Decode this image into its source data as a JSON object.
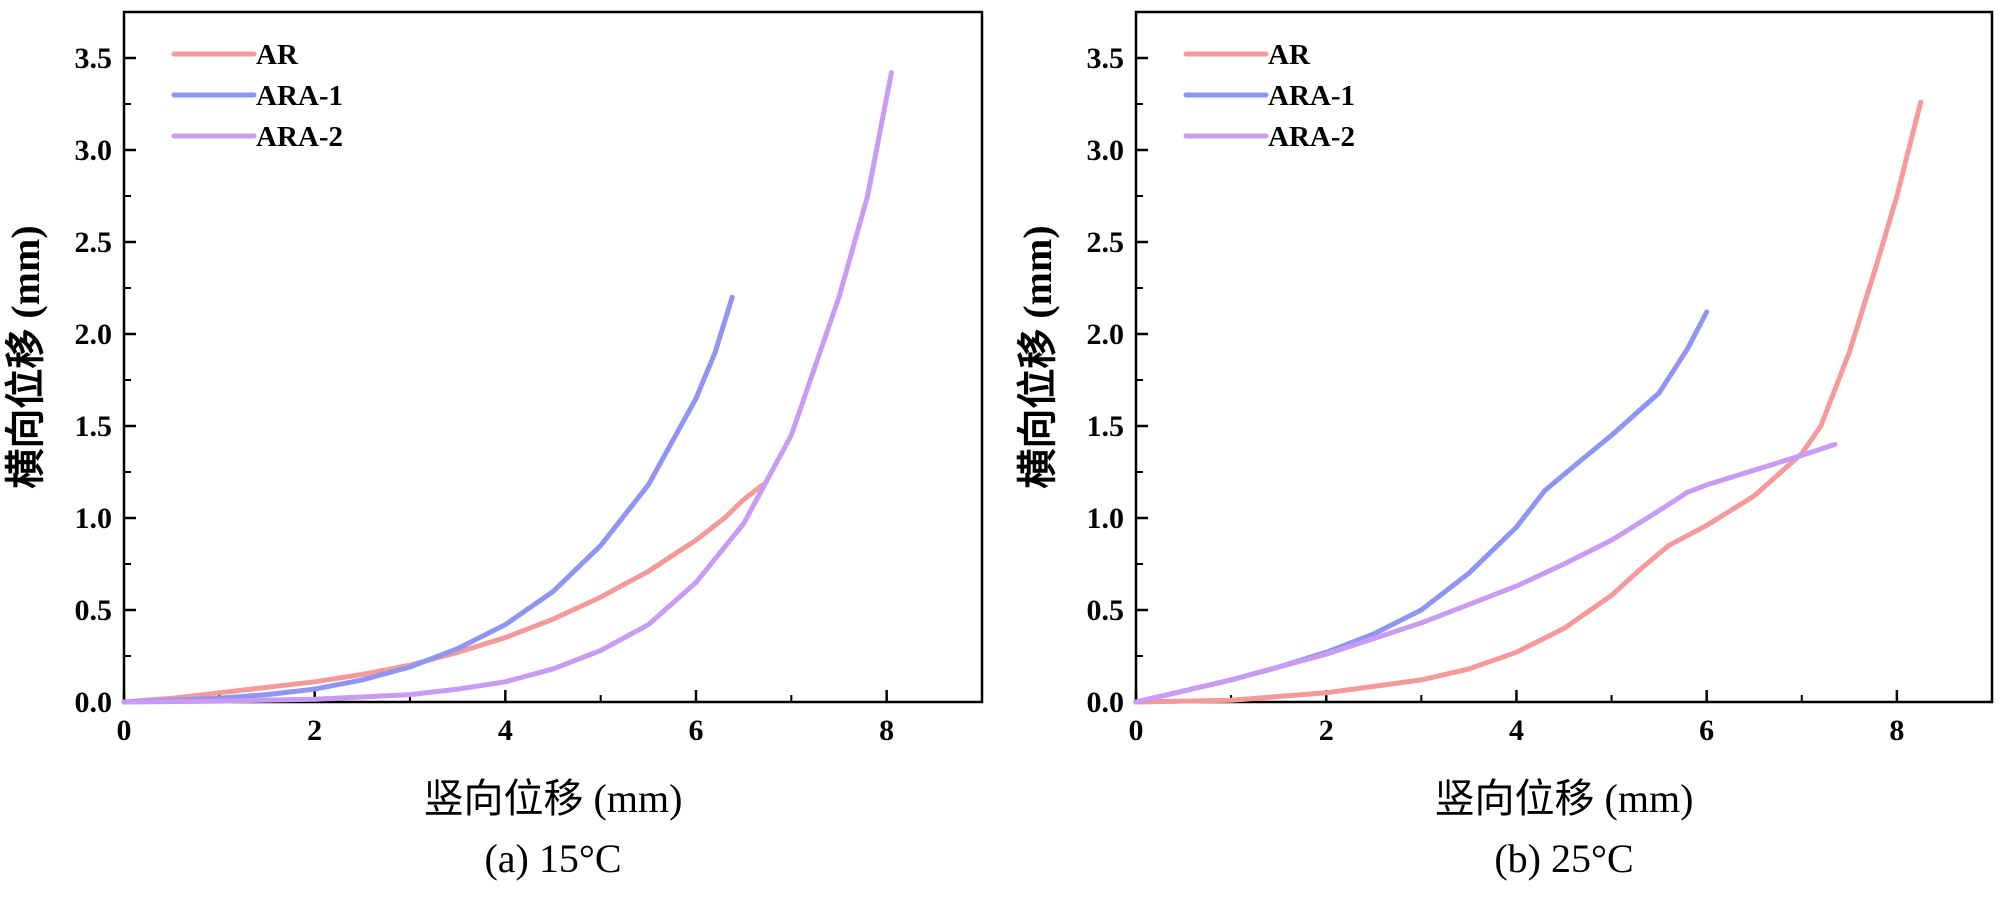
{
  "chart_data": [
    {
      "type": "line",
      "caption": "(a) 15°C",
      "xlabel": "竖向位移 (mm)",
      "ylabel": "横向位移 (mm)",
      "xlim": [
        0,
        9
      ],
      "ylim": [
        0,
        3.75
      ],
      "xticks": [
        0,
        2,
        4,
        6,
        8
      ],
      "yticks": [
        0.0,
        0.5,
        1.0,
        1.5,
        2.0,
        2.5,
        3.0,
        3.5
      ],
      "xtick_labels": [
        "0",
        "2",
        "4",
        "6",
        "8"
      ],
      "ytick_labels": [
        "0.0",
        "0.5",
        "1.0",
        "1.5",
        "2.0",
        "2.5",
        "3.0",
        "3.5"
      ],
      "grid": false,
      "legend_position": "top-left",
      "series": [
        {
          "name": "AR",
          "color": "#f49a9a",
          "x": [
            0,
            0.5,
            1,
            1.5,
            2,
            2.5,
            3,
            3.5,
            4,
            4.5,
            5,
            5.5,
            6,
            6.3,
            6.5,
            6.7
          ],
          "y": [
            0,
            0.02,
            0.05,
            0.08,
            0.11,
            0.15,
            0.2,
            0.27,
            0.35,
            0.45,
            0.57,
            0.71,
            0.88,
            1.0,
            1.1,
            1.18
          ]
        },
        {
          "name": "ARA-1",
          "color": "#8e95f2",
          "x": [
            0,
            0.5,
            1,
            1.5,
            2,
            2.5,
            3,
            3.5,
            4,
            4.5,
            5,
            5.5,
            6,
            6.2,
            6.38
          ],
          "y": [
            0,
            0.01,
            0.02,
            0.04,
            0.07,
            0.12,
            0.19,
            0.29,
            0.42,
            0.6,
            0.85,
            1.18,
            1.65,
            1.9,
            2.2
          ]
        },
        {
          "name": "ARA-2",
          "color": "#c79cf2",
          "x": [
            0,
            1,
            2,
            3,
            3.5,
            4,
            4.5,
            5,
            5.5,
            6,
            6.5,
            7,
            7.5,
            7.8,
            8.05
          ],
          "y": [
            0,
            0.005,
            0.015,
            0.04,
            0.07,
            0.11,
            0.18,
            0.28,
            0.42,
            0.65,
            0.97,
            1.45,
            2.2,
            2.75,
            3.42
          ]
        }
      ]
    },
    {
      "type": "line",
      "caption": "(b) 25°C",
      "xlabel": "竖向位移 (mm)",
      "ylabel": "横向位移 (mm)",
      "xlim": [
        0,
        9
      ],
      "ylim": [
        0,
        3.75
      ],
      "xticks": [
        0,
        2,
        4,
        6,
        8
      ],
      "yticks": [
        0.0,
        0.5,
        1.0,
        1.5,
        2.0,
        2.5,
        3.0,
        3.5
      ],
      "xtick_labels": [
        "0",
        "2",
        "4",
        "6",
        "8"
      ],
      "ytick_labels": [
        "0.0",
        "0.5",
        "1.0",
        "1.5",
        "2.0",
        "2.5",
        "3.0",
        "3.5"
      ],
      "grid": false,
      "legend_position": "top-left",
      "series": [
        {
          "name": "AR",
          "color": "#f49a9a",
          "x": [
            0,
            1,
            2,
            3,
            3.5,
            4,
            4.5,
            5,
            5.3,
            5.6,
            6,
            6.5,
            7,
            7.2,
            7.5,
            7.8,
            8.0,
            8.25
          ],
          "y": [
            0,
            0.01,
            0.05,
            0.12,
            0.18,
            0.27,
            0.4,
            0.58,
            0.72,
            0.85,
            0.96,
            1.12,
            1.35,
            1.5,
            1.9,
            2.4,
            2.75,
            3.26
          ]
        },
        {
          "name": "ARA-1",
          "color": "#8e95f2",
          "x": [
            0,
            0.5,
            1,
            1.5,
            2,
            2.5,
            3,
            3.5,
            4,
            4.3,
            4.6,
            5,
            5.5,
            5.8,
            6.0
          ],
          "y": [
            0,
            0.06,
            0.12,
            0.19,
            0.27,
            0.37,
            0.5,
            0.7,
            0.95,
            1.15,
            1.28,
            1.45,
            1.68,
            1.92,
            2.12
          ]
        },
        {
          "name": "ARA-2",
          "color": "#c79cf2",
          "x": [
            0,
            1,
            2,
            3,
            4,
            4.5,
            5,
            5.5,
            5.8,
            6.0,
            6.5,
            7,
            7.35
          ],
          "y": [
            0,
            0.12,
            0.26,
            0.43,
            0.63,
            0.75,
            0.88,
            1.04,
            1.14,
            1.18,
            1.26,
            1.34,
            1.4
          ]
        }
      ]
    }
  ]
}
